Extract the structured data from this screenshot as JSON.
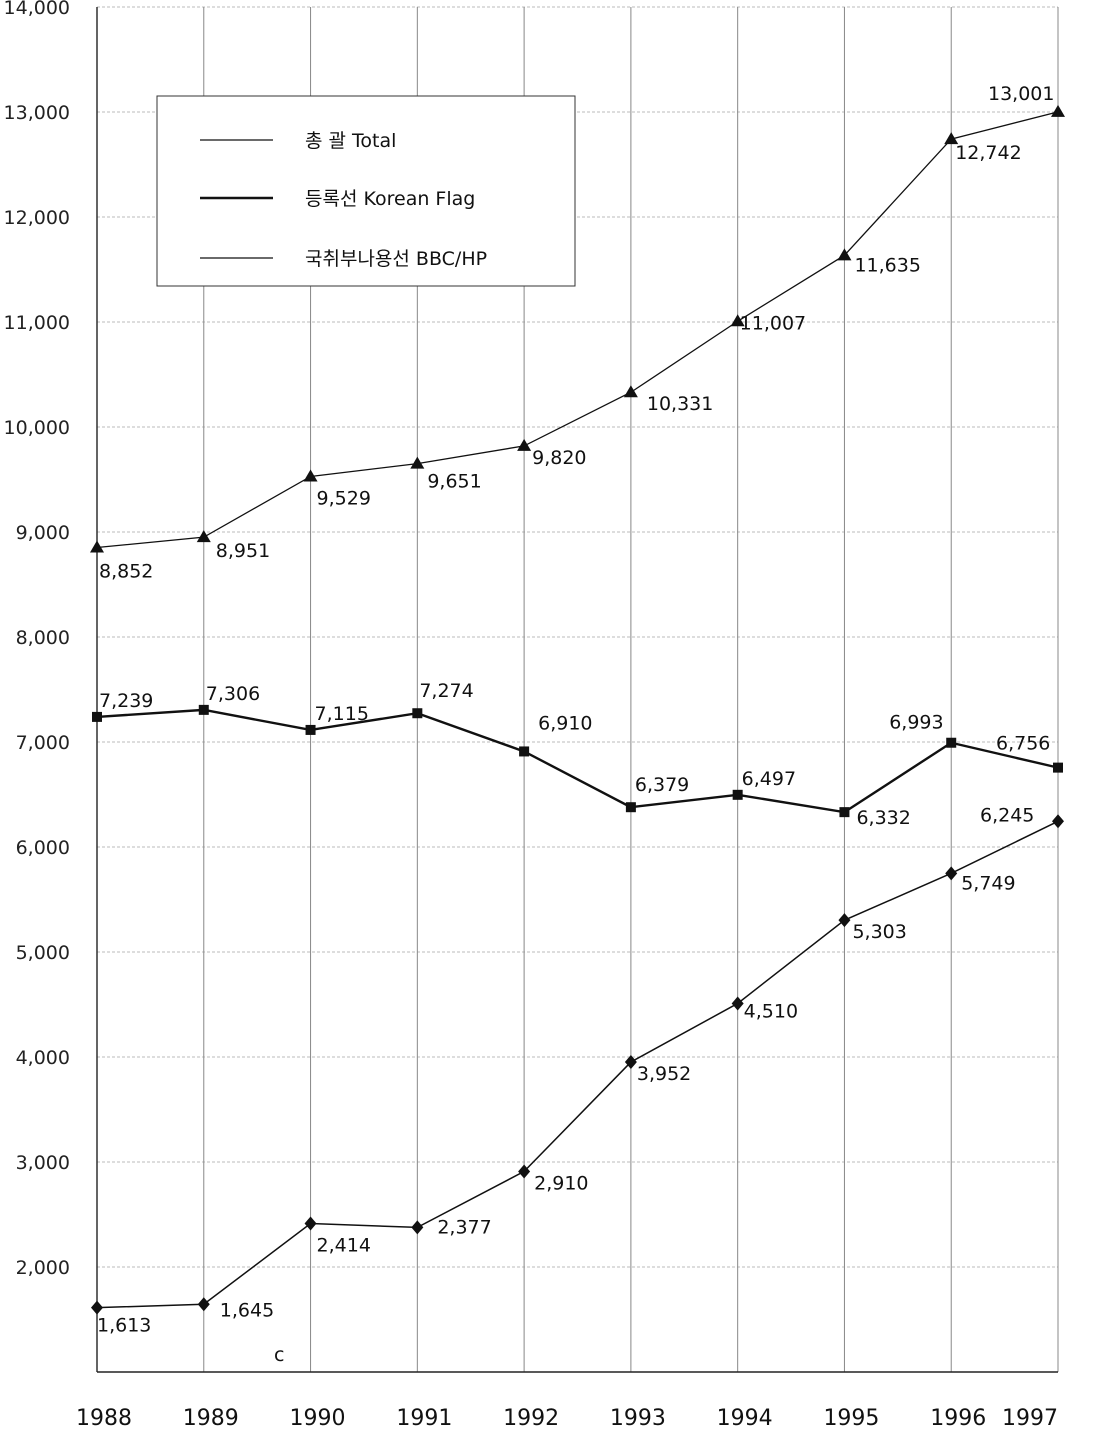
{
  "chart_data": {
    "type": "line",
    "x": [
      "1988",
      "1989",
      "1990",
      "1991",
      "1992",
      "1993",
      "1994",
      "1995",
      "1996",
      "1997"
    ],
    "ylim": [
      1000,
      14000
    ],
    "yticks": [
      "2,000",
      "3,000",
      "4,000",
      "5,000",
      "6,000",
      "7,000",
      "8,000",
      "9,000",
      "10,000",
      "11,000",
      "12,000",
      "13,000",
      "14,000"
    ],
    "grid": true,
    "legend_position": "top-left",
    "series": [
      {
        "name": "총 괄 Total",
        "marker": "triangle",
        "values": [
          8852,
          8951,
          9529,
          9651,
          9820,
          10331,
          11007,
          11635,
          12742,
          13001
        ],
        "labels": [
          "8,852",
          "8,951",
          "9,529",
          "9,651",
          "9,820",
          "10,331",
          "11,007",
          "11,635",
          "12,742",
          "13,001"
        ]
      },
      {
        "name": "등록선 Korean Flag",
        "marker": "square",
        "values": [
          7239,
          7306,
          7115,
          7274,
          6910,
          6379,
          6497,
          6332,
          6993,
          6756
        ],
        "labels": [
          "7,239",
          "7,306",
          "7,115",
          "7,274",
          "6,910",
          "6,379",
          "6,497",
          "6,332",
          "6,993",
          "6,756"
        ]
      },
      {
        "name": "국취부나용선 BBC/HP",
        "marker": "diamond",
        "values": [
          1613,
          1645,
          2414,
          2377,
          2910,
          3952,
          4510,
          5303,
          5749,
          6245
        ],
        "labels": [
          "1,613",
          "1,645",
          "2,414",
          "2,377",
          "2,910",
          "3,952",
          "4,510",
          "5,303",
          "5,749",
          "6,245"
        ]
      }
    ],
    "annotations": [
      "c"
    ]
  }
}
